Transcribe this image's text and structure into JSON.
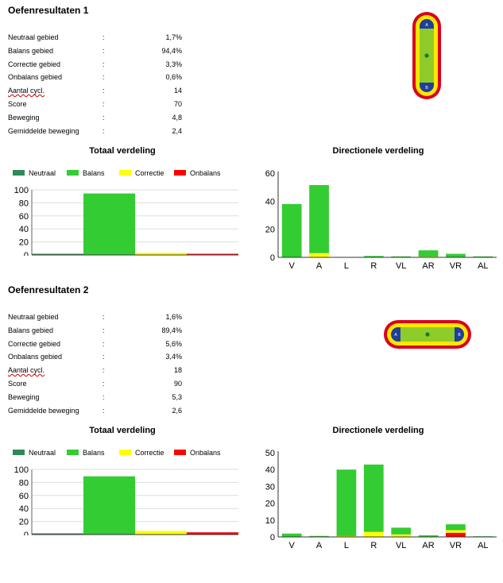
{
  "sections": [
    {
      "title": "Oefenresultaten  1",
      "stats": [
        {
          "label": "Neutraal gebied",
          "value": "1,7%"
        },
        {
          "label": "Balans gebied",
          "value": "94,4%"
        },
        {
          "label": "Correctie gebied",
          "value": "3,3%"
        },
        {
          "label": "Onbalans gebied",
          "value": "0,6%"
        },
        {
          "label": "Aantal cycl.",
          "value": "14"
        },
        {
          "label": "Score",
          "value": "70"
        },
        {
          "label": "Beweging",
          "value": "4,8"
        },
        {
          "label": "Gemiddelde beweging",
          "value": "2,4"
        }
      ],
      "gauge_orientation": "vertical",
      "gauge_labels": {
        "top": "A",
        "bottom": "B"
      }
    },
    {
      "title": "Oefenresultaten  2",
      "stats": [
        {
          "label": "Neutraal gebied",
          "value": "1,6%"
        },
        {
          "label": "Balans gebied",
          "value": "89,4%"
        },
        {
          "label": "Correctie gebied",
          "value": "5,6%"
        },
        {
          "label": "Onbalans gebied",
          "value": "3,4%"
        },
        {
          "label": "Aantal cycl.",
          "value": "18"
        },
        {
          "label": "Score",
          "value": "90"
        },
        {
          "label": "Beweging",
          "value": "5,3"
        },
        {
          "label": "Gemiddelde beweging",
          "value": "2,6"
        }
      ],
      "gauge_orientation": "horizontal",
      "gauge_labels": {
        "top": "A",
        "bottom": "B"
      }
    }
  ],
  "colors": {
    "neutraal": "#2e8b57",
    "balans": "#33cc33",
    "correctie": "#ffff00",
    "onbalans": "#ff0000",
    "gauge_outer": "#d9001b",
    "gauge_ring": "#ffe600",
    "gauge_tube": "#8fcc2a",
    "gauge_cap": "#1f3f9a"
  },
  "chart_data": [
    {
      "type": "bar",
      "title": "Totaal verdeling",
      "legend_position": "top",
      "categories": [
        "Neutraal",
        "Balans",
        "Correctie",
        "Onbalans"
      ],
      "series": [
        {
          "name": "Neutraal",
          "values": [
            1.7,
            0,
            0,
            0
          ]
        },
        {
          "name": "Balans",
          "values": [
            0,
            94.4,
            0,
            0
          ]
        },
        {
          "name": "Correctie",
          "values": [
            0,
            0,
            3.3,
            0
          ]
        },
        {
          "name": "Onbalans",
          "values": [
            0,
            0,
            0,
            0.6
          ]
        }
      ],
      "ylim": [
        0,
        100
      ],
      "yticks": [
        "0",
        "20",
        "40",
        "60",
        "80",
        "100"
      ],
      "grid": true
    },
    {
      "type": "bar",
      "stacked": true,
      "title": "Directionele verdeling",
      "categories": [
        "V",
        "A",
        "L",
        "R",
        "VL",
        "AR",
        "VR",
        "AL"
      ],
      "series": [
        {
          "name": "Neutraal",
          "values": [
            0,
            0,
            0,
            0,
            0,
            0,
            0,
            0
          ]
        },
        {
          "name": "Balans",
          "values": [
            38,
            48.5,
            0,
            1,
            0.7,
            4.5,
            2.5,
            0.7
          ]
        },
        {
          "name": "Correctie",
          "values": [
            0,
            3,
            0,
            0,
            0,
            0.5,
            0,
            0
          ]
        },
        {
          "name": "Onbalans",
          "values": [
            0,
            0,
            0,
            0,
            0,
            0,
            0,
            0
          ]
        }
      ],
      "ylim": [
        0,
        60
      ],
      "yticks": [
        "0",
        "20",
        "40",
        "60"
      ],
      "grid": false
    },
    {
      "type": "bar",
      "title": "Totaal verdeling",
      "legend_position": "top",
      "categories": [
        "Neutraal",
        "Balans",
        "Correctie",
        "Onbalans"
      ],
      "series": [
        {
          "name": "Neutraal",
          "values": [
            1.6,
            0,
            0,
            0
          ]
        },
        {
          "name": "Balans",
          "values": [
            0,
            89.4,
            0,
            0
          ]
        },
        {
          "name": "Correctie",
          "values": [
            0,
            0,
            5.6,
            0
          ]
        },
        {
          "name": "Onbalans",
          "values": [
            0,
            0,
            0,
            3.4
          ]
        }
      ],
      "ylim": [
        0,
        100
      ],
      "yticks": [
        "0",
        "20",
        "40",
        "60",
        "80",
        "100"
      ],
      "grid": true
    },
    {
      "type": "bar",
      "stacked": true,
      "title": "Directionele verdeling",
      "categories": [
        "V",
        "A",
        "L",
        "R",
        "VL",
        "AR",
        "VR",
        "AL"
      ],
      "series": [
        {
          "name": "Neutraal",
          "values": [
            0,
            0,
            0,
            0,
            0,
            0,
            0,
            0
          ]
        },
        {
          "name": "Balans",
          "values": [
            2,
            0.6,
            39.5,
            40,
            4,
            1,
            3.5,
            0.4
          ]
        },
        {
          "name": "Correctie",
          "values": [
            0,
            0,
            0.5,
            3,
            1.5,
            0,
            1.5,
            0
          ]
        },
        {
          "name": "Onbalans",
          "values": [
            0,
            0,
            0,
            0,
            0,
            0,
            2.5,
            0
          ]
        }
      ],
      "ylim": [
        0,
        50
      ],
      "yticks": [
        "0",
        "10",
        "20",
        "30",
        "40",
        "50"
      ],
      "grid": false
    }
  ]
}
